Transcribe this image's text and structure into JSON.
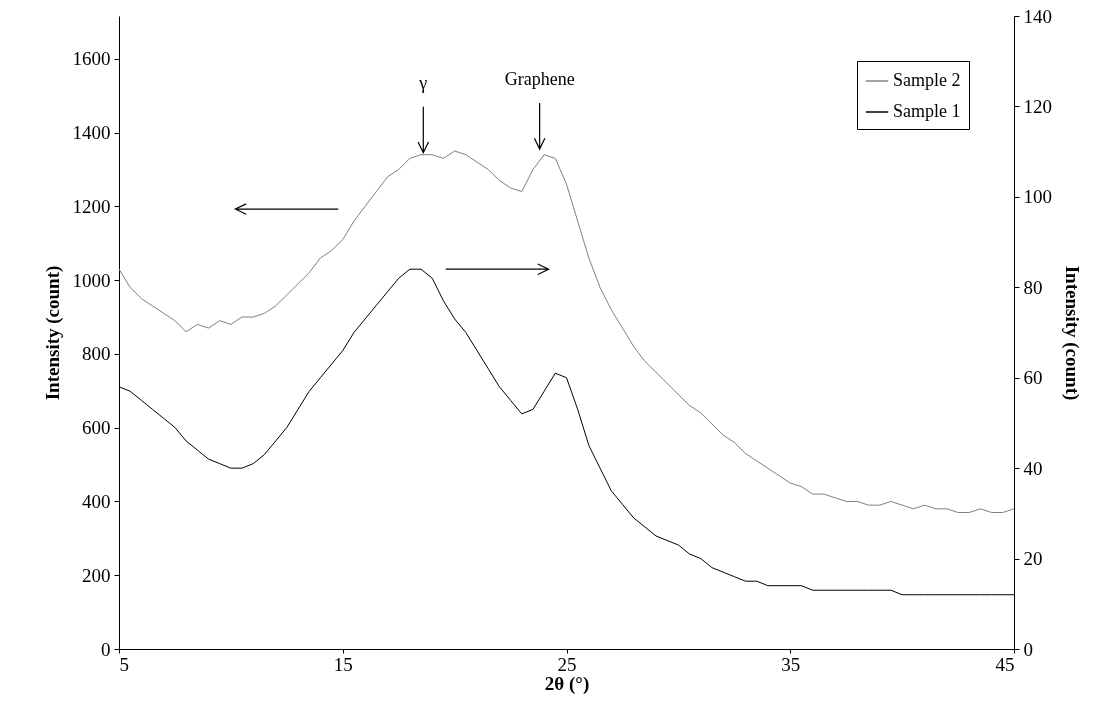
{
  "chart_data": {
    "type": "line",
    "xlabel": "2θ (°)",
    "ylabel": "Intensity (count)",
    "y2label": "Intensity (count)",
    "x": [
      5,
      5.5,
      6,
      6.5,
      7,
      7.5,
      8,
      8.5,
      9,
      9.5,
      10,
      10.5,
      11,
      11.5,
      12,
      12.5,
      13,
      13.5,
      14,
      14.5,
      15,
      15.5,
      16,
      16.5,
      17,
      17.5,
      18,
      18.5,
      19,
      19.5,
      20,
      20.5,
      21,
      21.5,
      22,
      22.5,
      23,
      23.5,
      24,
      24.5,
      25,
      25.5,
      26,
      26.5,
      27,
      27.5,
      28,
      28.5,
      29,
      29.5,
      30,
      30.5,
      31,
      31.5,
      32,
      32.5,
      33,
      33.5,
      34,
      34.5,
      35,
      35.5,
      36,
      36.5,
      37,
      37.5,
      38,
      38.5,
      39,
      39.5,
      40,
      40.5,
      41,
      41.5,
      42,
      42.5,
      43,
      43.5,
      44,
      44.5,
      45
    ],
    "series": [
      {
        "name": "Sample 2",
        "color": "#808080",
        "axis": "y",
        "values": [
          1030,
          980,
          950,
          930,
          910,
          890,
          860,
          880,
          870,
          890,
          880,
          900,
          900,
          910,
          930,
          960,
          990,
          1020,
          1060,
          1080,
          1110,
          1160,
          1200,
          1240,
          1280,
          1300,
          1330,
          1340,
          1340,
          1330,
          1350,
          1340,
          1320,
          1300,
          1270,
          1250,
          1240,
          1300,
          1340,
          1330,
          1260,
          1160,
          1060,
          980,
          920,
          870,
          820,
          780,
          750,
          720,
          690,
          660,
          640,
          610,
          580,
          560,
          530,
          510,
          490,
          470,
          450,
          440,
          420,
          420,
          410,
          400,
          400,
          390,
          390,
          400,
          390,
          380,
          390,
          380,
          380,
          370,
          370,
          380,
          370,
          370,
          380
        ]
      },
      {
        "name": "Sample 1",
        "color": "#000000",
        "axis": "y2",
        "values": [
          58,
          57,
          55,
          53,
          51,
          49,
          46,
          44,
          42,
          41,
          40,
          40,
          41,
          43,
          46,
          49,
          53,
          57,
          60,
          63,
          66,
          70,
          73,
          76,
          79,
          82,
          84,
          84,
          82,
          77,
          73,
          70,
          66,
          62,
          58,
          55,
          52,
          53,
          57,
          61,
          60,
          53,
          45,
          40,
          35,
          32,
          29,
          27,
          25,
          24,
          23,
          21,
          20,
          18,
          17,
          16,
          15,
          15,
          14,
          14,
          14,
          14,
          13,
          13,
          13,
          13,
          13,
          13,
          13,
          13,
          12,
          12,
          12,
          12,
          12,
          12,
          12,
          12,
          12,
          12,
          12
        ]
      }
    ],
    "xlim": [
      5,
      45
    ],
    "xticks": [
      5,
      15,
      25,
      35,
      45
    ],
    "ylim": [
      0,
      1716
    ],
    "yticks": [
      0,
      200,
      400,
      600,
      800,
      1000,
      1200,
      1400,
      1600
    ],
    "y2lim": [
      0,
      140
    ],
    "y2ticks": [
      0,
      20,
      40,
      60,
      80,
      100,
      120,
      140
    ],
    "annotations": [
      {
        "text": "γ",
        "x": 18.6,
        "y": 1340
      },
      {
        "text": "Graphene",
        "x": 23.8,
        "y": 1350
      }
    ],
    "legend": "top right",
    "grid": false,
    "marker": "none",
    "line_style": "solid"
  }
}
